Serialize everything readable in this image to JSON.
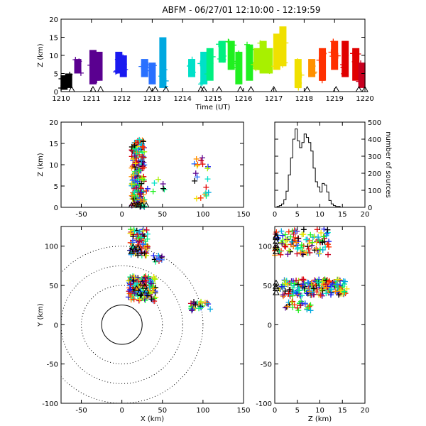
{
  "title": "ABFM - 06/27/01 12:10:00 - 12:19:59",
  "colors": {
    "palette": [
      "#000000",
      "#5a0090",
      "#1a1af0",
      "#2870ff",
      "#00a8e0",
      "#00e0c8",
      "#00f080",
      "#20f020",
      "#a8f000",
      "#f0e000",
      "#ff9000",
      "#ff3000",
      "#e00000",
      "#c80020"
    ],
    "station": "#000000",
    "ring": "#000000"
  },
  "chart_data": [
    {
      "id": "time-height",
      "type": "scatter",
      "marker": "plus",
      "xlabel": "Time (UT)",
      "ylabel": "Z (km)",
      "xlim": [
        1210,
        1220
      ],
      "ylim": [
        0,
        20
      ],
      "xticks": [
        "1210",
        "1211",
        "1212",
        "1213",
        "1214",
        "1215",
        "1216",
        "1217",
        "1218",
        "1219",
        "1220"
      ],
      "yticks": [
        0,
        5,
        10,
        15,
        20
      ],
      "columns": [
        {
          "t": 1210.1,
          "zmin": 0.5,
          "zmax": 4.5,
          "c": 0
        },
        {
          "t": 1210.25,
          "zmin": 1,
          "zmax": 5,
          "c": 0
        },
        {
          "t": 1210.55,
          "zmin": 5,
          "zmax": 9,
          "c": 1
        },
        {
          "t": 1211.05,
          "zmin": 2,
          "zmax": 11.5,
          "c": 1
        },
        {
          "t": 1211.25,
          "zmin": 3,
          "zmax": 11,
          "c": 1
        },
        {
          "t": 1211.9,
          "zmin": 5,
          "zmax": 11,
          "c": 2
        },
        {
          "t": 1212.05,
          "zmin": 4,
          "zmax": 10,
          "c": 2
        },
        {
          "t": 1212.75,
          "zmin": 4,
          "zmax": 9,
          "c": 3
        },
        {
          "t": 1213.0,
          "zmin": 2,
          "zmax": 8,
          "c": 3
        },
        {
          "t": 1213.35,
          "zmin": 1,
          "zmax": 15,
          "c": 4
        },
        {
          "t": 1214.3,
          "zmin": 4,
          "zmax": 9,
          "c": 5
        },
        {
          "t": 1214.7,
          "zmin": 2,
          "zmax": 11,
          "c": 5
        },
        {
          "t": 1214.9,
          "zmin": 3,
          "zmax": 12,
          "c": 6
        },
        {
          "t": 1215.3,
          "zmin": 8,
          "zmax": 14,
          "c": 6
        },
        {
          "t": 1215.6,
          "zmin": 6,
          "zmax": 14,
          "c": 7
        },
        {
          "t": 1215.85,
          "zmin": 2,
          "zmax": 11,
          "c": 7
        },
        {
          "t": 1216.2,
          "zmin": 3,
          "zmax": 13,
          "c": 7
        },
        {
          "t": 1216.45,
          "zmin": 6,
          "zmax": 12,
          "c": 8
        },
        {
          "t": 1216.65,
          "zmin": 5,
          "zmax": 14,
          "c": 8
        },
        {
          "t": 1216.85,
          "zmin": 5,
          "zmax": 12,
          "c": 8
        },
        {
          "t": 1217.1,
          "zmin": 6,
          "zmax": 16,
          "c": 9
        },
        {
          "t": 1217.3,
          "zmin": 7,
          "zmax": 18,
          "c": 9
        },
        {
          "t": 1217.8,
          "zmin": 1,
          "zmax": 9,
          "c": 9
        },
        {
          "t": 1218.25,
          "zmin": 4,
          "zmax": 9,
          "c": 10
        },
        {
          "t": 1218.6,
          "zmin": 3,
          "zmax": 12,
          "c": 11
        },
        {
          "t": 1219.0,
          "zmin": 6,
          "zmax": 14,
          "c": 11
        },
        {
          "t": 1219.35,
          "zmin": 4,
          "zmax": 14,
          "c": 12
        },
        {
          "t": 1219.7,
          "zmin": 3,
          "zmax": 12,
          "c": 12
        },
        {
          "t": 1219.9,
          "zmin": 1,
          "zmax": 8,
          "c": 13
        }
      ],
      "stations_t": [
        1210.35,
        1211.05,
        1211.3,
        1212.9,
        1213.1,
        1213.45,
        1214.6,
        1214.7,
        1215.2,
        1215.9,
        1216.25,
        1217.0,
        1218.1,
        1219.05,
        1219.8,
        1220.0
      ]
    },
    {
      "id": "x-z",
      "type": "scatter",
      "marker": "plus",
      "xlabel": "",
      "ylabel": "Z (km)",
      "xlim": [
        -75,
        150
      ],
      "ylim": [
        0,
        20
      ],
      "xticks": [
        -50,
        0,
        50,
        100,
        150
      ],
      "yticks": [
        0,
        5,
        10,
        15,
        20
      ],
      "clusters": [
        {
          "x": [
            12,
            28
          ],
          "z": [
            0,
            16
          ],
          "n": 220
        },
        {
          "x": [
            88,
            108
          ],
          "z": [
            2,
            12
          ],
          "n": 20
        },
        {
          "x": [
            30,
            55
          ],
          "z": [
            3,
            8
          ],
          "n": 8
        }
      ],
      "stations_x": [
        12,
        15,
        18,
        20,
        22,
        25,
        30
      ]
    },
    {
      "id": "histogram",
      "type": "bar",
      "style": "step",
      "xlabel": "",
      "ylabel": "number of sources",
      "ylabel_side": "right",
      "xlim": [
        0,
        20
      ],
      "ylim": [
        0,
        500
      ],
      "xticks": [
        0,
        5,
        10,
        15,
        20
      ],
      "yticks": [
        0,
        100,
        200,
        300,
        400,
        500
      ],
      "bin_start": 0,
      "bin_width": 0.5,
      "values": [
        0,
        5,
        10,
        20,
        45,
        95,
        190,
        290,
        400,
        460,
        390,
        350,
        380,
        430,
        410,
        380,
        330,
        230,
        150,
        120,
        90,
        140,
        130,
        90,
        40,
        20,
        10,
        5,
        5,
        0,
        0,
        0,
        0,
        0,
        0,
        0,
        0,
        0,
        0,
        0
      ]
    },
    {
      "id": "plan-view",
      "type": "scatter",
      "marker": "plus",
      "xlabel": "X (km)",
      "ylabel": "Y (km)",
      "xlim": [
        -75,
        150
      ],
      "ylim": [
        -100,
        125
      ],
      "xticks": [
        -50,
        0,
        50,
        100,
        150
      ],
      "yticks": [
        -100,
        -50,
        0,
        50,
        100
      ],
      "range_rings_km": [
        25,
        50,
        75,
        100
      ],
      "clusters": [
        {
          "x": [
            10,
            32
          ],
          "y": [
            88,
            122
          ],
          "n": 90
        },
        {
          "x": [
            8,
            42
          ],
          "y": [
            30,
            62
          ],
          "n": 140
        },
        {
          "x": [
            85,
            110
          ],
          "y": [
            18,
            30
          ],
          "n": 25
        },
        {
          "x": [
            35,
            50
          ],
          "y": [
            80,
            88
          ],
          "n": 10
        }
      ],
      "stations": [
        [
          12,
          92
        ],
        [
          16,
          95
        ],
        [
          20,
          97
        ],
        [
          22,
          92
        ],
        [
          14,
          98
        ],
        [
          25,
          52
        ],
        [
          22,
          40
        ],
        [
          28,
          48
        ],
        [
          18,
          45
        ],
        [
          30,
          42
        ]
      ]
    },
    {
      "id": "z-y",
      "type": "scatter",
      "marker": "plus",
      "xlabel": "Z (km)",
      "ylabel": "",
      "xlim": [
        0,
        20
      ],
      "ylim": [
        -100,
        125
      ],
      "xticks": [
        0,
        5,
        10,
        15,
        20
      ],
      "yticks": [
        -100,
        -50,
        0,
        50,
        100
      ],
      "clusters": [
        {
          "z": [
            0,
            12
          ],
          "y": [
            88,
            122
          ],
          "n": 110
        },
        {
          "z": [
            1,
            16
          ],
          "y": [
            36,
            58
          ],
          "n": 180
        },
        {
          "z": [
            2,
            9
          ],
          "y": [
            18,
            30
          ],
          "n": 25
        }
      ],
      "stations_y": [
        92,
        97,
        100,
        105,
        110,
        112,
        40,
        45,
        48,
        52
      ]
    }
  ]
}
